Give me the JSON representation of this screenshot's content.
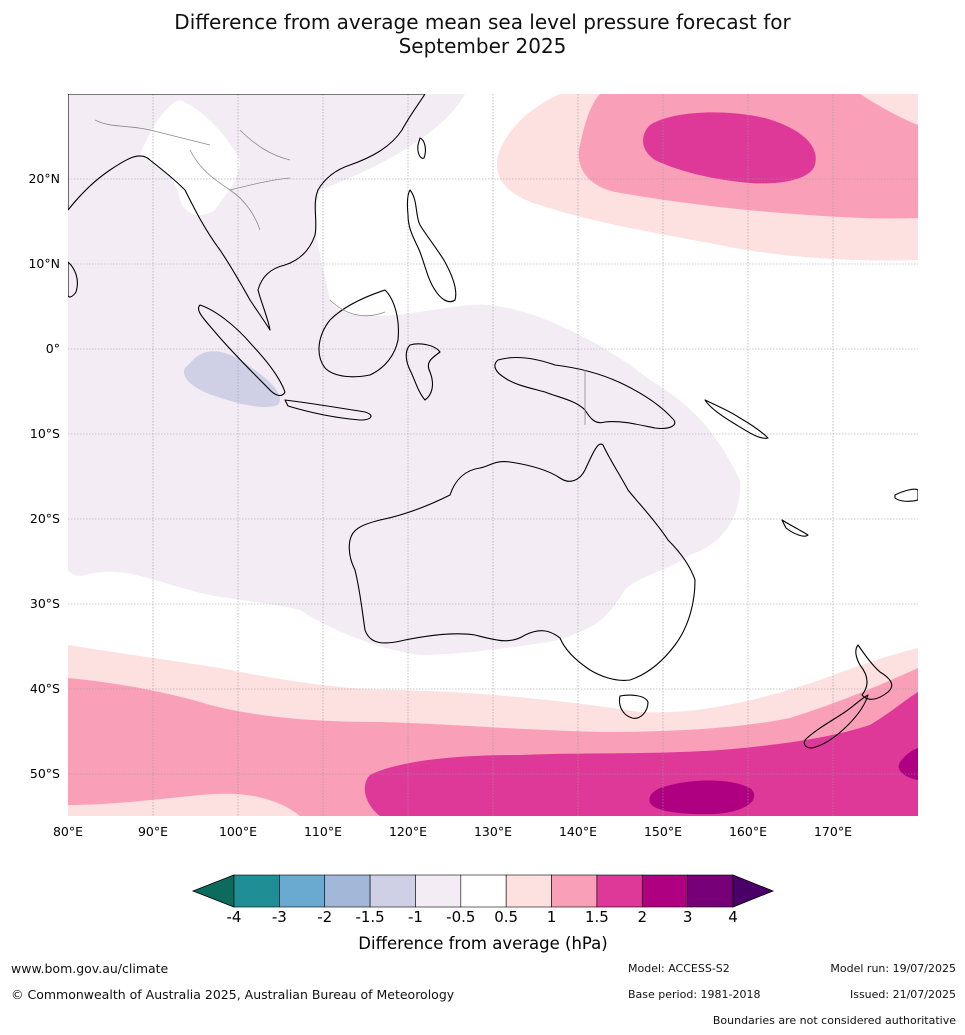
{
  "title": {
    "line1": "Difference from average mean sea level pressure forecast for",
    "line2": "September 2025"
  },
  "map": {
    "lat_labels": [
      "20°N",
      "10°N",
      "0°",
      "10°S",
      "20°S",
      "30°S",
      "40°S",
      "50°S"
    ],
    "lon_labels": [
      "80°E",
      "90°E",
      "100°E",
      "110°E",
      "120°E",
      "130°E",
      "140°E",
      "150°E",
      "160°E",
      "170°E"
    ],
    "lon_range": [
      80,
      180
    ],
    "lat_range": [
      -55,
      30
    ]
  },
  "colorbar": {
    "title": "Difference from average (hPa)",
    "tick_labels": [
      "-4",
      "-3",
      "-2",
      "-1.5",
      "-1",
      "-0.5",
      "0.5",
      "1",
      "1.5",
      "2",
      "3",
      "4"
    ],
    "colors": {
      "below_min": "#0d6b5d",
      "bins": [
        "#1f8f95",
        "#6aaad0",
        "#a3b8d8",
        "#cfd0e6",
        "#f3ecf5",
        "#ffffff",
        "#fde0e0",
        "#f9a0b8",
        "#de3899",
        "#ae0080",
        "#770078"
      ],
      "above_max": "#4a0068"
    }
  },
  "footer": {
    "website": "www.bom.gov.au/climate",
    "copyright": "© Commonwealth of Australia 2025, Australian Bureau of Meteorology",
    "model": "Model: ACCESS-S2",
    "base_period": "Base period: 1981-2018",
    "model_run": "Model run: 19/07/2025",
    "issued": "Issued: 21/07/2025",
    "boundaries_note": "Boundaries are not considered authoritative"
  }
}
